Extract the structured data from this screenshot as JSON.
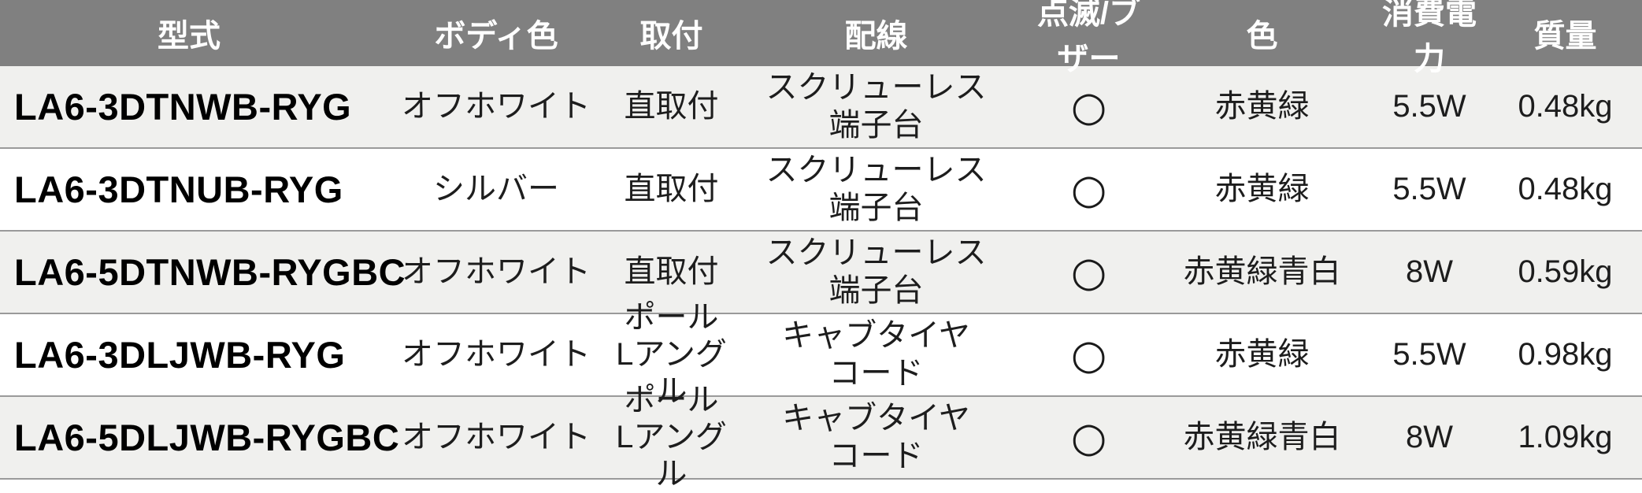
{
  "table": {
    "columns": [
      {
        "key": "model",
        "label": "型式"
      },
      {
        "key": "body_color",
        "label": "ボディ色"
      },
      {
        "key": "mounting",
        "label": "取付"
      },
      {
        "key": "wiring",
        "label": "配線"
      },
      {
        "key": "blink_buzzer",
        "label": "点滅/ブザー"
      },
      {
        "key": "led_colors",
        "label": "色"
      },
      {
        "key": "power",
        "label": "消費電力"
      },
      {
        "key": "mass",
        "label": "質量"
      }
    ],
    "rows": [
      {
        "model": "LA6-3DTNWB-RYG",
        "body_color": "オフホワイト",
        "mounting": "直取付",
        "wiring": "スクリューレス\n端子台",
        "blink_buzzer": "○",
        "led_colors": "赤黄緑",
        "power": "5.5W",
        "mass": "0.48kg"
      },
      {
        "model": "LA6-3DTNUB-RYG",
        "body_color": "シルバー",
        "mounting": "直取付",
        "wiring": "スクリューレス\n端子台",
        "blink_buzzer": "○",
        "led_colors": "赤黄緑",
        "power": "5.5W",
        "mass": "0.48kg"
      },
      {
        "model": "LA6-5DTNWB-RYGBC",
        "body_color": "オフホワイト",
        "mounting": "直取付",
        "wiring": "スクリューレス\n端子台",
        "blink_buzzer": "○",
        "led_colors": "赤黄緑青白",
        "power": "8W",
        "mass": "0.59kg"
      },
      {
        "model": "LA6-3DLJWB-RYG",
        "body_color": "オフホワイト",
        "mounting": "ポール\nLアングル",
        "wiring": "キャブタイヤ\nコード",
        "blink_buzzer": "○",
        "led_colors": "赤黄緑",
        "power": "5.5W",
        "mass": "0.98kg"
      },
      {
        "model": "LA6-5DLJWB-RYGBC",
        "body_color": "オフホワイト",
        "mounting": "ポール\nLアングル",
        "wiring": "キャブタイヤ\nコード",
        "blink_buzzer": "○",
        "led_colors": "赤黄緑青白",
        "power": "8W",
        "mass": "1.09kg"
      }
    ]
  },
  "colors": {
    "header_bg": "#808080",
    "header_text": "#ffffff",
    "row_stripe": "#f0f0ee",
    "row_white": "#ffffff",
    "row_border": "#9a9a9a",
    "model_text": "#000000",
    "cell_text": "#1d1d1d"
  }
}
